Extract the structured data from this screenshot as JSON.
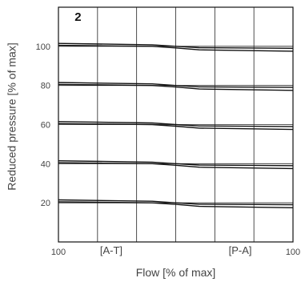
{
  "chart_data": {
    "type": "line",
    "panel_label": "2",
    "xlabel": "Flow [% of max]",
    "ylabel": "Reduced pressure [% of max]",
    "x_ticks": [
      {
        "x": -100,
        "label": "100"
      },
      {
        "x": 100,
        "label": "100"
      }
    ],
    "x_region_labels": [
      {
        "x": -55,
        "label": "[A-T]"
      },
      {
        "x": 55,
        "label": "[P-A]"
      }
    ],
    "y_ticks": [
      20,
      40,
      60,
      80,
      100
    ],
    "xlim": [
      -100,
      100
    ],
    "ylim": [
      0,
      120
    ],
    "grid": true,
    "series": [
      {
        "pairs": [
          {
            "x": [
              -100,
              -20,
              0,
              20,
              100
            ],
            "y": [
              101.5,
              100.8,
              100.0,
              99.3,
              99.0
            ]
          },
          {
            "x": [
              -100,
              -20,
              0,
              20,
              100
            ],
            "y": [
              100.5,
              100.0,
              99.2,
              98.2,
              97.5
            ]
          }
        ]
      },
      {
        "pairs": [
          {
            "x": [
              -100,
              -20,
              0,
              20,
              100
            ],
            "y": [
              81.5,
              80.8,
              80.0,
              79.3,
              79.0
            ]
          },
          {
            "x": [
              -100,
              -20,
              0,
              20,
              100
            ],
            "y": [
              80.5,
              80.0,
              79.2,
              78.2,
              77.5
            ]
          }
        ]
      },
      {
        "pairs": [
          {
            "x": [
              -100,
              -20,
              0,
              20,
              100
            ],
            "y": [
              61.5,
              60.8,
              60.0,
              59.3,
              59.0
            ]
          },
          {
            "x": [
              -100,
              -20,
              0,
              20,
              100
            ],
            "y": [
              60.5,
              60.0,
              59.2,
              58.2,
              57.5
            ]
          }
        ]
      },
      {
        "pairs": [
          {
            "x": [
              -100,
              -20,
              0,
              20,
              100
            ],
            "y": [
              41.5,
              40.8,
              40.0,
              39.3,
              39.0
            ]
          },
          {
            "x": [
              -100,
              -20,
              0,
              20,
              100
            ],
            "y": [
              40.5,
              40.0,
              39.2,
              38.2,
              37.5
            ]
          }
        ]
      },
      {
        "pairs": [
          {
            "x": [
              -100,
              -20,
              0,
              20,
              100
            ],
            "y": [
              21.5,
              20.8,
              20.0,
              19.3,
              19.0
            ]
          },
          {
            "x": [
              -100,
              -20,
              0,
              20,
              100
            ],
            "y": [
              20.5,
              20.0,
              19.2,
              18.2,
              17.5
            ]
          }
        ]
      }
    ]
  },
  "colors": {
    "line": "#111111",
    "grid": "#222222",
    "frame": "#111111"
  }
}
